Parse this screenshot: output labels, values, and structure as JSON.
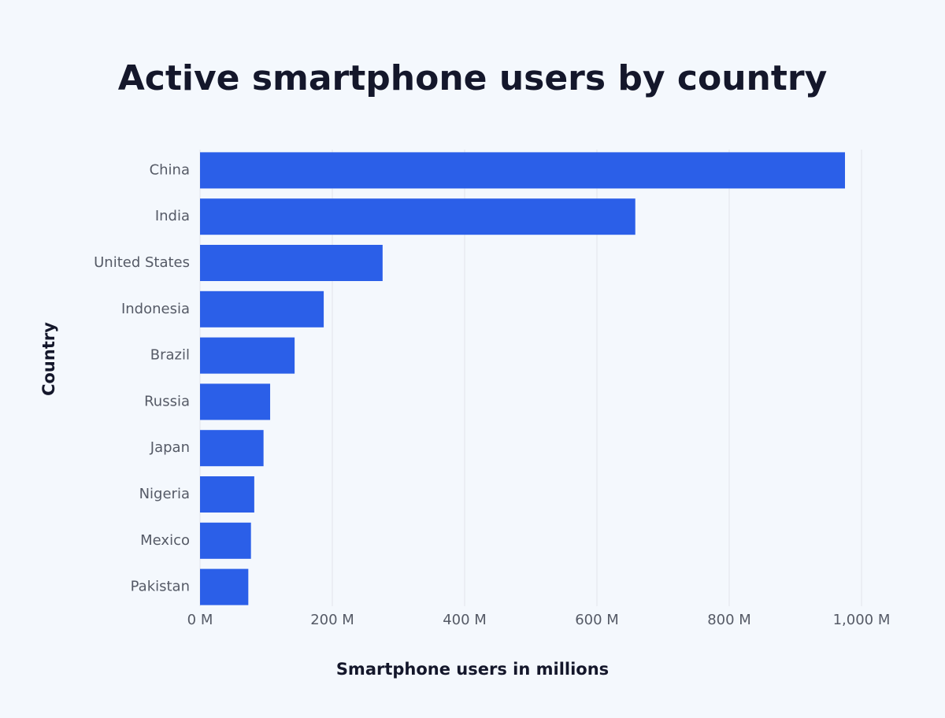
{
  "chart_data": {
    "type": "bar",
    "orientation": "horizontal",
    "title": "Active smartphone users by country",
    "x_label": "Smartphone users in millions",
    "y_label": "Country",
    "categories": [
      "China",
      "India",
      "United States",
      "Indonesia",
      "Brazil",
      "Russia",
      "Japan",
      "Nigeria",
      "Mexico",
      "Pakistan"
    ],
    "values": [
      975,
      658,
      276,
      187,
      143,
      106,
      96,
      82,
      77,
      73
    ],
    "color": "#2b5fe8",
    "xlim": [
      0,
      1000
    ],
    "xticks": [
      {
        "value": 0,
        "label": "0 M"
      },
      {
        "value": 200,
        "label": "200 M"
      },
      {
        "value": 400,
        "label": "400 M"
      },
      {
        "value": 600,
        "label": "600 M"
      },
      {
        "value": 800,
        "label": "800 M"
      },
      {
        "value": 1000,
        "label": "1,000 M"
      }
    ],
    "grid": true
  }
}
